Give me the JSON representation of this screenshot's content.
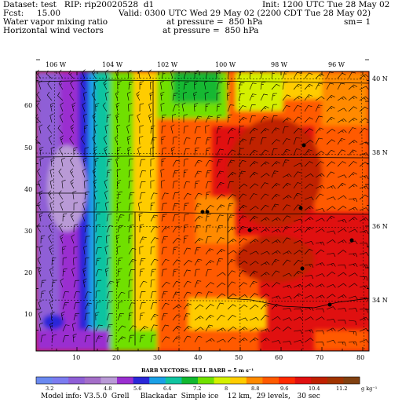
{
  "header": {
    "line1_left": "Dataset: test   RIP: rip20020528  d1",
    "line1_right": "Init: 1200 UTC Tue 28 May 02",
    "line2_left": "Fcst:     15.00",
    "line2_right": "Valid: 0300 UTC Wed 29 May 02 (2200 CDT Tue 28 May 02)",
    "line3_left": "Water vapor mixing ratio",
    "line3_mid": "at pressure =  850 hPa",
    "line3_right": "sm= 1",
    "line4_left": "Horizontal wind vectors",
    "line4_mid": "at pressure =  850 hPa"
  },
  "axes": {
    "lon_labels": [
      "106 W",
      "104 W",
      "102 W",
      "100 W",
      "98 W",
      "96 W"
    ],
    "lat_labels": [
      "40 N",
      "38 N",
      "36 N",
      "34 N"
    ],
    "y_ticks": [
      "60",
      "50",
      "40",
      "30",
      "20",
      "10"
    ],
    "x_ticks": [
      "10",
      "20",
      "30",
      "40",
      "50",
      "60",
      "70",
      "80"
    ]
  },
  "barb_caption": "BARB VECTORS:  FULL BARB = 5 m s⁻¹",
  "colorbar": {
    "labels": [
      "3.2",
      "4",
      "4.8",
      "5.6",
      "6.4",
      "7.2",
      "8",
      "8.8",
      "9.6",
      "10.4",
      "11.2"
    ],
    "unit": "g kg⁻¹",
    "colors": [
      "#6a89f0",
      "#7c7cf0",
      "#8f5fd6",
      "#a46ec8",
      "#b99ad6",
      "#9a2fd0",
      "#2a28d8",
      "#1aa0e6",
      "#10c4a0",
      "#12b830",
      "#70e000",
      "#d4f000",
      "#ffcc00",
      "#ff8a00",
      "#ff5a00",
      "#ff2a00",
      "#e01010",
      "#c02000",
      "#a03400",
      "#804010"
    ]
  },
  "footer": "Model info: V3.5.0  Grell     Blackadar  Simple ice    12 km,  29 levels,   30 sec"
}
